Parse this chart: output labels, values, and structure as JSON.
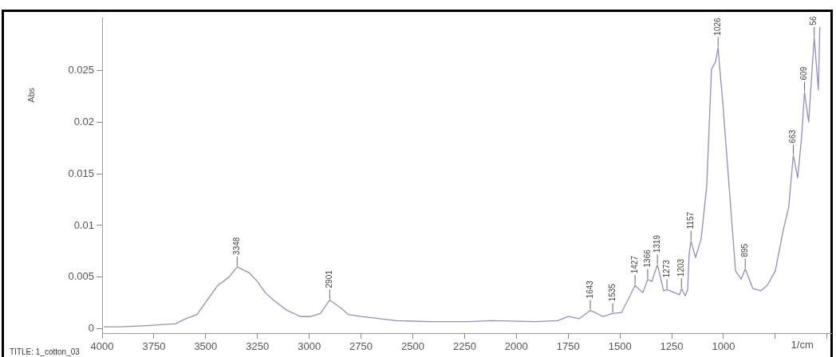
{
  "chart_data": {
    "type": "line",
    "xlabel": "1/cm",
    "ylabel": "Abs",
    "xlim": [
      4000,
      480
    ],
    "ylim": [
      -0.0004,
      0.0301
    ],
    "xticks": [
      4000,
      3750,
      3500,
      3250,
      3000,
      2750,
      2500,
      2250,
      2000,
      1750,
      1500,
      1250,
      1000,
      {
        "value": 750,
        "label": null
      },
      {
        "value": 500,
        "label": null
      }
    ],
    "yticks": [
      0,
      0.005,
      0.01,
      0.015,
      0.02,
      0.025
    ],
    "grid": false,
    "legend": false,
    "marker": "none",
    "line_style": "solid",
    "series": [
      {
        "color": "#8d8fc9",
        "x": [
          3992,
          3915,
          3800,
          3646,
          3596,
          3542,
          3492,
          3442,
          3388,
          3348,
          3288,
          3250,
          3212,
          3173,
          3108,
          3042,
          2992,
          2946,
          2901,
          2846,
          2812,
          2750,
          2581,
          2415,
          2235,
          2119,
          1904,
          1800,
          1750,
          1696,
          1643,
          1581,
          1535,
          1492,
          1454,
          1427,
          1389,
          1366,
          1346,
          1319,
          1289,
          1273,
          1212,
          1203,
          1185,
          1173,
          1166,
          1157,
          1135,
          1108,
          1081,
          1058,
          1039,
          1026,
          1019,
          1004,
          973,
          942,
          915,
          895,
          858,
          819,
          789,
          750,
          712,
          685,
          663,
          642,
          623,
          609,
          589,
          562,
          542,
          535
        ],
        "values": [
          0.0002,
          0.0002,
          0.0003,
          0.0005,
          0.001,
          0.0014,
          0.0028,
          0.0042,
          0.005,
          0.006,
          0.0054,
          0.0046,
          0.0035,
          0.0028,
          0.0018,
          0.0012,
          0.0012,
          0.0015,
          0.0028,
          0.002,
          0.0014,
          0.0012,
          0.0008,
          0.0007,
          0.0007,
          0.0008,
          0.0007,
          0.0008,
          0.0012,
          0.001,
          0.0018,
          0.0012,
          0.0015,
          0.0016,
          0.0031,
          0.0042,
          0.0035,
          0.0048,
          0.0046,
          0.0062,
          0.0037,
          0.0038,
          0.0033,
          0.0039,
          0.0032,
          0.0038,
          0.0072,
          0.0085,
          0.0069,
          0.0087,
          0.0138,
          0.0251,
          0.0258,
          0.0272,
          0.0254,
          0.022,
          0.0138,
          0.0056,
          0.0048,
          0.0058,
          0.0039,
          0.0037,
          0.0042,
          0.0056,
          0.0095,
          0.0118,
          0.0168,
          0.0146,
          0.0185,
          0.0229,
          0.02,
          0.0282,
          0.0231,
          0.0292
        ]
      }
    ],
    "annotations": [
      {
        "text": "3348",
        "x": 3348,
        "y": 0.006
      },
      {
        "text": "2901",
        "x": 2901,
        "y": 0.0028
      },
      {
        "text": "1643",
        "x": 1643,
        "y": 0.0018
      },
      {
        "text": "1535",
        "x": 1535,
        "y": 0.0015
      },
      {
        "text": "1427",
        "x": 1427,
        "y": 0.0042
      },
      {
        "text": "1366",
        "x": 1366,
        "y": 0.0048
      },
      {
        "text": "1319",
        "x": 1319,
        "y": 0.0062
      },
      {
        "text": "1273",
        "x": 1273,
        "y": 0.0038
      },
      {
        "text": "1203",
        "x": 1203,
        "y": 0.0039
      },
      {
        "text": "1157",
        "x": 1157,
        "y": 0.0085
      },
      {
        "text": "1026",
        "x": 1026,
        "y": 0.0272
      },
      {
        "text": "895",
        "x": 895,
        "y": 0.0058
      },
      {
        "text": "663",
        "x": 663,
        "y": 0.0168
      },
      {
        "text": "609",
        "x": 609,
        "y": 0.0229
      },
      {
        "text": "56",
        "x": 562,
        "y": 0.0282
      },
      "TITLE: 1_cotton_03"
    ]
  }
}
